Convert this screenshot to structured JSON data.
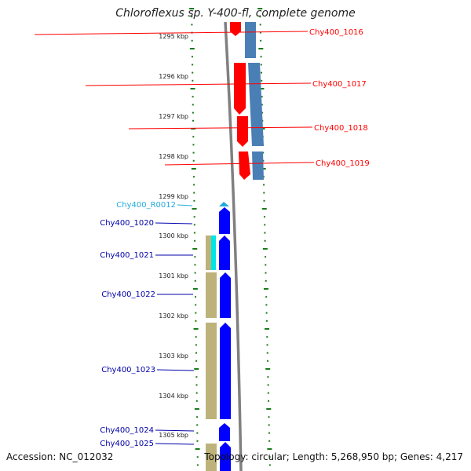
{
  "title": "Chloroflexus sp. Y-400-fl, complete genome",
  "accession": "Accession: NC_012032",
  "summary": "Topology: circular; Length: 5,268,950 bp; Genes: 4,217",
  "colors": {
    "right_strand": "#ff0000",
    "right_strand_cds": "#4a7fb5",
    "left_strand": "#0000ff",
    "left_strand_cds": "#bdb27a",
    "rna": "#00e5e5",
    "rna_label": "#22aadd",
    "ticks": "#1a7a1a",
    "backbone": "#808080"
  },
  "positions_kbp": [
    "1295 kbp",
    "1296 kbp",
    "1297 kbp",
    "1298 kbp",
    "1299 kbp",
    "1300 kbp",
    "1301 kbp",
    "1302 kbp",
    "1303 kbp",
    "1304 kbp",
    "1305 kbp"
  ],
  "genes": [
    {
      "name": "Chy400_1016",
      "strand": "right",
      "type": "gene"
    },
    {
      "name": "Chy400_1017",
      "strand": "right",
      "type": "gene"
    },
    {
      "name": "Chy400_1018",
      "strand": "right",
      "type": "gene"
    },
    {
      "name": "Chy400_1019",
      "strand": "right",
      "type": "gene"
    },
    {
      "name": "Chy400_R0012",
      "strand": "left",
      "type": "rna"
    },
    {
      "name": "Chy400_1020",
      "strand": "left",
      "type": "gene"
    },
    {
      "name": "Chy400_1021",
      "strand": "left",
      "type": "gene"
    },
    {
      "name": "Chy400_1022",
      "strand": "left",
      "type": "gene"
    },
    {
      "name": "Chy400_1023",
      "strand": "left",
      "type": "gene"
    },
    {
      "name": "Chy400_1024",
      "strand": "left",
      "type": "gene"
    },
    {
      "name": "Chy400_1025",
      "strand": "left",
      "type": "gene"
    }
  ]
}
